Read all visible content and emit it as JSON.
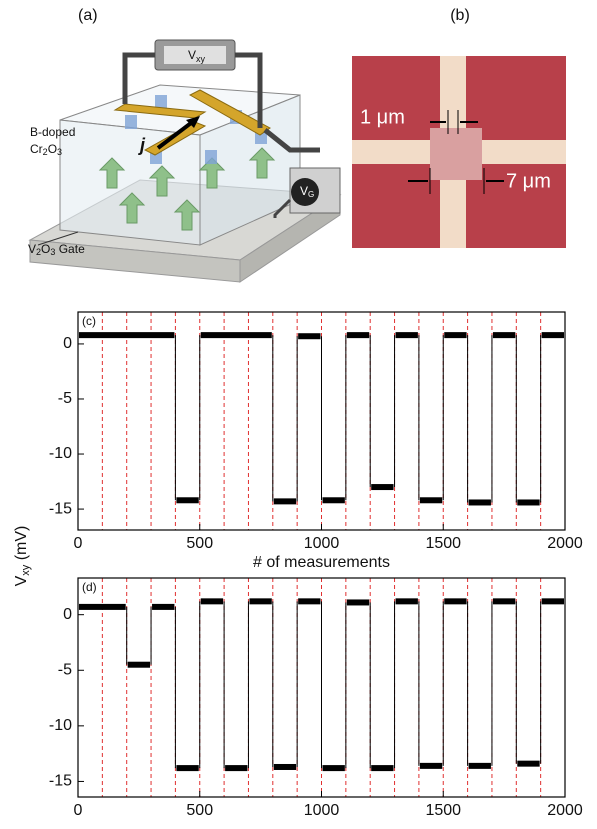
{
  "panels": {
    "a": "(a)",
    "b": "(b)"
  },
  "illustration": {
    "layer_top": "B-doped",
    "layer_cr": "Cr",
    "layer_sub1": "2",
    "layer_o": "O",
    "layer_sub2": "3",
    "gate_v": "V",
    "gate_sub1": "2",
    "gate_o": "O",
    "gate_sub2": "3",
    "gate_rest": " Gate",
    "meter_v": "V",
    "meter_sub": "xy",
    "source_v": "V",
    "source_sub": "G",
    "current": "j"
  },
  "micrograph": {
    "width_small": "1 μm",
    "width_large": "7 μm"
  },
  "chart_data": [
    {
      "type": "step",
      "panel_label": "(c)",
      "color": "#000000",
      "x": [
        0,
        400,
        500,
        800,
        900,
        1000,
        1100,
        1200,
        1300,
        1400,
        1500,
        1600,
        1700,
        1800,
        1900
      ],
      "values": [
        0.8,
        -14.2,
        0.8,
        -14.3,
        0.7,
        -14.2,
        0.8,
        -13,
        0.8,
        -14.2,
        0.8,
        -14.4,
        0.8,
        -14.4,
        0.8
      ],
      "xlim": [
        0,
        2000
      ],
      "ylim": [
        -16.9,
        2.9
      ],
      "xticks": [
        0,
        500,
        1000,
        1500,
        2000
      ],
      "yticks": [
        0,
        -5,
        -10,
        -15
      ],
      "vlines": [
        100,
        200,
        300,
        400,
        500,
        600,
        700,
        800,
        900,
        1000,
        1100,
        1200,
        1300,
        1400,
        1500,
        1600,
        1700,
        1800,
        1900
      ],
      "vline_color": "#e03030",
      "x_label": "# of measurements",
      "y_label_main": "V",
      "y_label_sub": "xy",
      "y_label_unit": " (mV)"
    },
    {
      "type": "step",
      "panel_label": "(d)",
      "color": "#000000",
      "x": [
        0,
        200,
        300,
        400,
        500,
        600,
        700,
        800,
        900,
        1000,
        1100,
        1200,
        1300,
        1400,
        1500,
        1600,
        1700,
        1800,
        1900
      ],
      "values": [
        0.7,
        -4.5,
        0.7,
        -13.8,
        1.2,
        -13.8,
        1.2,
        -13.7,
        1.2,
        -13.8,
        1.1,
        -13.8,
        1.2,
        -13.6,
        1.2,
        -13.6,
        1.2,
        -13.4,
        1.2
      ],
      "xlim": [
        0,
        2000
      ],
      "ylim": [
        -16.4,
        3.3
      ],
      "xticks": [
        0,
        500,
        1000,
        1500,
        2000
      ],
      "yticks": [
        0,
        -5,
        -10,
        -15
      ],
      "vlines": [
        100,
        200,
        300,
        400,
        500,
        600,
        700,
        800,
        900,
        1000,
        1100,
        1200,
        1300,
        1400,
        1500,
        1600,
        1700,
        1800,
        1900
      ],
      "vline_color": "#e03030"
    }
  ]
}
